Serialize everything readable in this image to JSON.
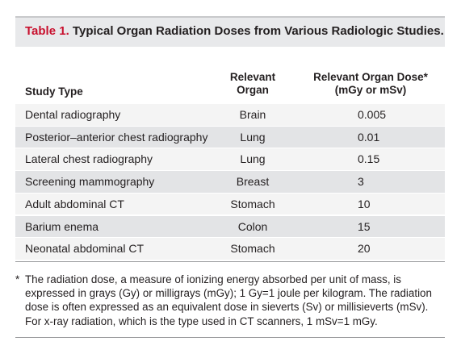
{
  "table": {
    "label": "Table 1.",
    "title": "Typical Organ Radiation Doses from Various Radiologic Studies.",
    "headers": {
      "study_type": "Study Type",
      "organ_line1": "Relevant",
      "organ_line2": "Organ",
      "dose_line1": "Relevant Organ Dose*",
      "dose_line2": "(mGy or mSv)"
    },
    "rows": [
      {
        "study": "Dental radiography",
        "organ": "Brain",
        "dose": "0.005"
      },
      {
        "study": "Posterior–anterior chest radiography",
        "organ": "Lung",
        "dose": "0.01"
      },
      {
        "study": "Lateral chest radiography",
        "organ": "Lung",
        "dose": "0.15"
      },
      {
        "study": "Screening mammography",
        "organ": "Breast",
        "dose": "3"
      },
      {
        "study": "Adult abdominal CT",
        "organ": "Stomach",
        "dose": "10"
      },
      {
        "study": "Barium enema",
        "organ": "Colon",
        "dose": "15"
      },
      {
        "study": "Neonatal abdominal CT",
        "organ": "Stomach",
        "dose": "20"
      }
    ],
    "footnote_mark": "*",
    "footnote": "The radiation dose, a measure of ionizing energy absorbed per unit of mass, is expressed in grays (Gy) or milligrays (mGy); 1 Gy=1 joule per kilogram. The radiation dose is often expressed as an equivalent dose in sieverts (Sv) or millisieverts (mSv). For x-ray radiation, which is the type used in CT scanners, 1 mSv=1 mGy."
  },
  "colors": {
    "label_red": "#c8102e",
    "title_band": "#e8e9eb",
    "row_light": "#f4f4f4",
    "row_dark": "#e3e4e6"
  }
}
